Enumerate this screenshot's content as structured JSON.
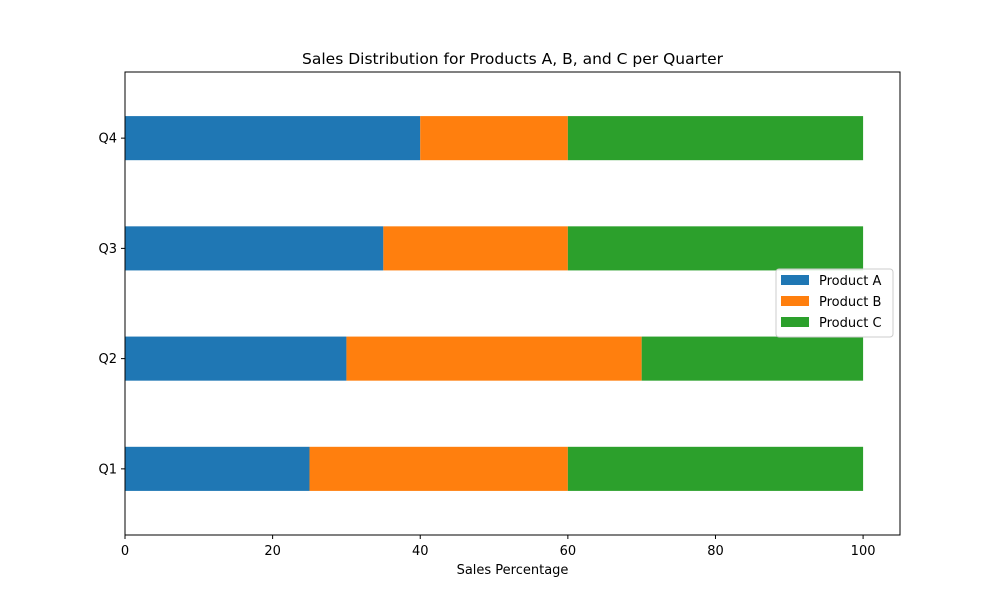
{
  "chart_data": {
    "type": "bar",
    "orientation": "horizontal",
    "stacked": true,
    "title": "Sales Distribution for Products A, B, and C per Quarter",
    "xlabel": "Sales Percentage",
    "ylabel": "",
    "categories": [
      "Q1",
      "Q2",
      "Q3",
      "Q4"
    ],
    "series": [
      {
        "name": "Product A",
        "color": "#1f77b4",
        "values": [
          25,
          30,
          35,
          40
        ]
      },
      {
        "name": "Product B",
        "color": "#ff7f0e",
        "values": [
          35,
          40,
          25,
          20
        ]
      },
      {
        "name": "Product C",
        "color": "#2ca02c",
        "values": [
          40,
          30,
          40,
          40
        ]
      }
    ],
    "xlim": [
      0,
      105
    ],
    "xticks": [
      0,
      20,
      40,
      60,
      80,
      100
    ],
    "grid": false,
    "legend_position": "center-right"
  }
}
